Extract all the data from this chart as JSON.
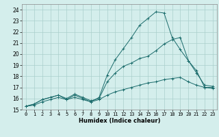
{
  "xlabel": "Humidex (Indice chaleur)",
  "ylabel": "",
  "xlim": [
    -0.5,
    23.5
  ],
  "ylim": [
    15,
    24.5
  ],
  "yticks": [
    15,
    16,
    17,
    18,
    19,
    20,
    21,
    22,
    23,
    24
  ],
  "xticks": [
    0,
    1,
    2,
    3,
    4,
    5,
    6,
    7,
    8,
    9,
    10,
    11,
    12,
    13,
    14,
    15,
    16,
    17,
    18,
    19,
    20,
    21,
    22,
    23
  ],
  "bg_color": "#d4eeec",
  "grid_color": "#aacfcc",
  "line_color": "#1a6b6b",
  "series": [
    {
      "x": [
        0,
        1,
        2,
        3,
        4,
        5,
        6,
        7,
        8,
        9,
        10,
        11,
        12,
        13,
        14,
        15,
        16,
        17,
        18,
        19,
        20,
        21,
        22,
        23
      ],
      "y": [
        15.3,
        15.5,
        15.9,
        16.1,
        16.3,
        15.9,
        16.3,
        16.0,
        15.7,
        16.1,
        18.1,
        19.5,
        20.5,
        21.5,
        22.6,
        23.2,
        23.8,
        23.7,
        21.5,
        20.4,
        19.4,
        18.5,
        17.0,
        17.0
      ]
    },
    {
      "x": [
        0,
        1,
        2,
        3,
        4,
        5,
        6,
        7,
        8,
        9,
        10,
        11,
        12,
        13,
        14,
        15,
        16,
        17,
        18,
        19,
        20,
        21,
        22,
        23
      ],
      "y": [
        15.3,
        15.5,
        15.9,
        16.1,
        16.3,
        16.0,
        16.4,
        16.1,
        15.8,
        16.0,
        17.5,
        18.3,
        18.9,
        19.2,
        19.6,
        19.8,
        20.3,
        20.9,
        21.3,
        21.5,
        19.4,
        18.3,
        17.2,
        17.1
      ]
    },
    {
      "x": [
        0,
        1,
        2,
        3,
        4,
        5,
        6,
        7,
        8,
        9,
        10,
        11,
        12,
        13,
        14,
        15,
        16,
        17,
        18,
        19,
        20,
        21,
        22,
        23
      ],
      "y": [
        15.3,
        15.4,
        15.7,
        15.9,
        16.1,
        15.9,
        16.1,
        15.9,
        15.7,
        15.9,
        16.3,
        16.6,
        16.8,
        17.0,
        17.2,
        17.4,
        17.5,
        17.7,
        17.8,
        17.9,
        17.5,
        17.2,
        17.0,
        16.9
      ]
    }
  ]
}
